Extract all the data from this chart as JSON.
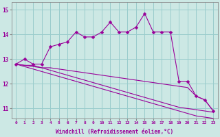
{
  "xlabel": "Windchill (Refroidissement éolien,°C)",
  "background_color": "#cce8e4",
  "line_color": "#990099",
  "grid_color": "#99cccc",
  "x_hours": [
    0,
    1,
    2,
    3,
    4,
    5,
    6,
    7,
    8,
    9,
    10,
    11,
    12,
    13,
    14,
    15,
    16,
    17,
    18,
    19,
    20,
    21,
    22,
    23
  ],
  "line1": [
    12.8,
    13.0,
    12.8,
    12.8,
    13.5,
    13.6,
    13.7,
    14.1,
    13.9,
    13.9,
    14.1,
    14.5,
    14.1,
    14.1,
    14.3,
    14.85,
    14.1,
    14.1,
    14.1,
    12.1,
    12.1,
    11.5,
    11.35,
    10.9
  ],
  "line2": [
    12.8,
    12.75,
    12.75,
    12.65,
    12.65,
    12.6,
    12.55,
    12.5,
    12.45,
    12.4,
    12.35,
    12.3,
    12.25,
    12.2,
    12.15,
    12.1,
    12.05,
    12.0,
    11.95,
    11.9,
    11.85,
    11.5,
    11.35,
    10.9
  ],
  "line3": [
    12.8,
    12.75,
    12.7,
    12.65,
    12.55,
    12.45,
    12.35,
    12.25,
    12.15,
    12.05,
    11.95,
    11.85,
    11.75,
    11.65,
    11.55,
    11.45,
    11.35,
    11.25,
    11.15,
    11.05,
    11.0,
    10.95,
    10.9,
    10.85
  ],
  "line4": [
    12.8,
    12.7,
    12.6,
    12.5,
    12.4,
    12.3,
    12.2,
    12.1,
    12.0,
    11.9,
    11.8,
    11.7,
    11.6,
    11.5,
    11.4,
    11.3,
    11.2,
    11.1,
    11.0,
    10.9,
    10.8,
    10.7,
    10.65,
    10.6
  ],
  "ylim": [
    10.6,
    15.3
  ],
  "yticks": [
    11,
    12,
    13,
    14,
    15
  ],
  "xticks": [
    0,
    1,
    2,
    3,
    4,
    5,
    6,
    7,
    8,
    9,
    10,
    11,
    12,
    13,
    14,
    15,
    16,
    17,
    18,
    19,
    20,
    21,
    22,
    23
  ],
  "markersize": 2.5,
  "linewidth": 0.8
}
